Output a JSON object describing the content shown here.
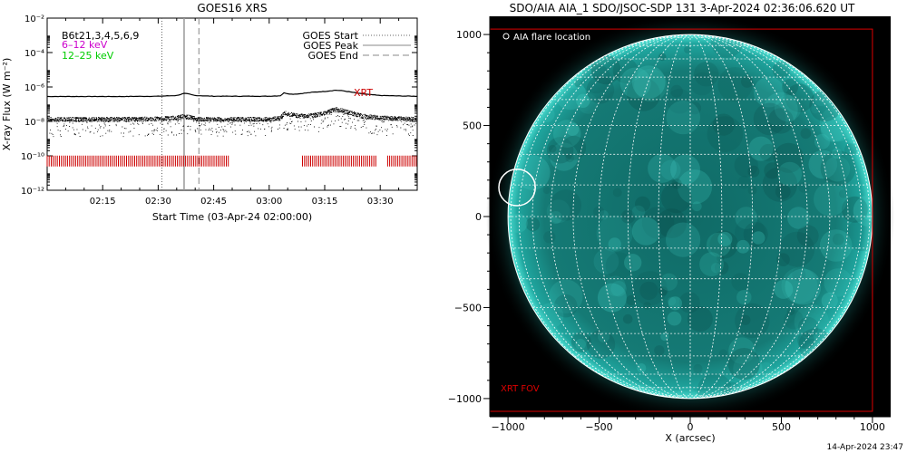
{
  "chart_data": [
    {
      "type": "line",
      "title": "GOES16 XRS",
      "xlabel": "Start Time (03-Apr-24 02:00:00)",
      "ylabel": "X-ray Flux (W m⁻²)",
      "x_ticks": [
        "02:15",
        "02:30",
        "02:45",
        "03:00",
        "03:15",
        "03:30"
      ],
      "x_tick_minutes": [
        15,
        30,
        45,
        60,
        75,
        90
      ],
      "x_range_minutes": [
        0,
        100
      ],
      "y_scale": "log",
      "y_range": [
        1e-12,
        0.01
      ],
      "y_ticks": [
        "10⁻¹²",
        "10⁻¹⁰",
        "10⁻⁸",
        "10⁻⁶",
        "10⁻⁴",
        "10⁻²"
      ],
      "y_tick_exponents": [
        -12,
        -10,
        -8,
        -6,
        -4,
        -2
      ],
      "channel_text": "B6t21,3,4,5,6,9",
      "channel_labels": [
        {
          "text": "6–12 keV",
          "color": "#cc00cc"
        },
        {
          "text": "12–25 keV",
          "color": "#00cc00"
        }
      ],
      "legend": {
        "placement": "top-right",
        "entries": [
          {
            "name": "GOES Start",
            "style": "dotted",
            "minute": 31
          },
          {
            "name": "GOES Peak",
            "style": "solid",
            "minute": 37
          },
          {
            "name": "GOES End",
            "style": "dashed",
            "minute": 41
          }
        ]
      },
      "annotation": {
        "text": "XRT",
        "color": "#cc0000"
      },
      "series": [
        {
          "style": "solid",
          "color": "#000000",
          "x": [
            0,
            10,
            20,
            30,
            35,
            37,
            38,
            40,
            45,
            60,
            63,
            64,
            66,
            68,
            72,
            75,
            78,
            80,
            85,
            90,
            95,
            100
          ],
          "y": [
            2.8e-07,
            2.8e-07,
            2.8e-07,
            2.9e-07,
            3.2e-07,
            4.2e-07,
            4e-07,
            3.2e-07,
            2.9e-07,
            2.9e-07,
            3.1e-07,
            4.5e-07,
            3.8e-07,
            4e-07,
            5e-07,
            5.5e-07,
            6.5e-07,
            6e-07,
            4e-07,
            3.2e-07,
            3e-07,
            2.9e-07
          ]
        },
        {
          "style": "noisy-dots",
          "color": "#000000",
          "x": [
            0,
            10,
            20,
            30,
            35,
            37,
            38,
            40,
            45,
            60,
            63,
            64,
            66,
            68,
            72,
            75,
            78,
            80,
            85,
            90,
            95,
            100
          ],
          "y": [
            1.3e-08,
            1.3e-08,
            1.3e-08,
            1.4e-08,
            1.6e-08,
            2e-08,
            1.8e-08,
            1.4e-08,
            1.3e-08,
            1.3e-08,
            1.5e-08,
            3e-08,
            2.4e-08,
            2e-08,
            2.2e-08,
            3e-08,
            5e-08,
            4e-08,
            2e-08,
            1.6e-08,
            1.4e-08,
            1.3e-08
          ]
        }
      ],
      "xrt_coverage": {
        "color": "#cc0000",
        "level": 5e-11,
        "intervals_minutes": [
          [
            0,
            49
          ],
          [
            69,
            89
          ],
          [
            92,
            100
          ]
        ]
      }
    },
    {
      "type": "image",
      "title": "SDO/AIA AIA_1 SDO/JSOC-SDP 131  3-Apr-2024 02:36:06.620 UT",
      "xlabel": "X (arcsec)",
      "ylabel": "",
      "x_range": [
        -1100,
        1100
      ],
      "y_range": [
        -1100,
        1100
      ],
      "x_ticks": [
        -1000,
        -500,
        0,
        500,
        1000
      ],
      "y_ticks": [
        -1000,
        -500,
        0,
        500,
        1000
      ],
      "x_tick_labels": [
        "−1000",
        "−500",
        "0",
        "500",
        "1000"
      ],
      "y_tick_labels": [
        "−1000",
        "−500",
        "0",
        "500",
        "1000"
      ],
      "solar_radius_arcsec": 1000,
      "disk_color": "#1a8f8a",
      "grid_color": "#ffffff",
      "legend_text": "AIA flare location",
      "flare": {
        "x": -950,
        "y": 160,
        "radius": 100
      },
      "fov": {
        "label": "XRT FOV",
        "color": "#dd0000",
        "x0": -1100,
        "y0": -1070,
        "x1": 1000,
        "y1": 1030
      }
    }
  ],
  "footer": {
    "timestamp": "14-Apr-2024 23:47"
  }
}
